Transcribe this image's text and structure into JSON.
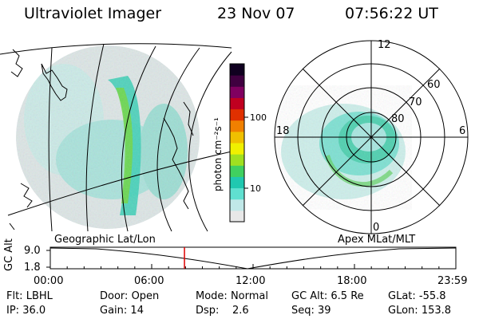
{
  "header": {
    "instrument": "Ultraviolet Imager",
    "date": "23 Nov 07",
    "time": "07:56:22 UT"
  },
  "left_map": {
    "projection_label": "Geographic Lat/Lon"
  },
  "colorbar": {
    "unit_label": "photon cm⁻²s⁻¹",
    "ticks": [
      {
        "label": "100",
        "value": 100
      },
      {
        "label": "10",
        "value": 10
      }
    ],
    "scale": "log",
    "colors": [
      "#e8e8e8",
      "#c0e8e8",
      "#60e0d0",
      "#20c8b0",
      "#40d060",
      "#a0e020",
      "#f0f000",
      "#f0c000",
      "#f08000",
      "#e03000",
      "#c00020",
      "#800060",
      "#400040",
      "#100020"
    ]
  },
  "polar": {
    "coord_label": "Apex MLat/MLT",
    "mlt_labels": [
      "12",
      "18",
      "6",
      "0"
    ],
    "lat_labels": [
      "60",
      "70",
      "80"
    ]
  },
  "altitude_plot": {
    "ylabel": "GC Alt",
    "y_ticks": [
      "9.0",
      "1.8"
    ],
    "ylim": [
      1.8,
      9.0
    ],
    "x_ticks": [
      "00:00",
      "06:00",
      "12:00",
      "18:00",
      "23:59"
    ],
    "current_time_hours": 7.94,
    "marker_color": "#dd0000"
  },
  "status": [
    [
      {
        "label": "Flt:",
        "value": "LBHL"
      },
      {
        "label": "Door:",
        "value": "Open"
      },
      {
        "label": "Mode:",
        "value": "Normal"
      },
      {
        "label": "GC Alt:",
        "value": "6.5 Re"
      },
      {
        "label": "GLat:",
        "value": "-55.8"
      }
    ],
    [
      {
        "label": "IP:",
        "value": "36.0"
      },
      {
        "label": "Gain:",
        "value": "14"
      },
      {
        "label": "Dsp:",
        "value": "2.6"
      },
      {
        "label": "Seq:",
        "value": "39"
      },
      {
        "label": "GLon:",
        "value": "153.8"
      }
    ]
  ]
}
